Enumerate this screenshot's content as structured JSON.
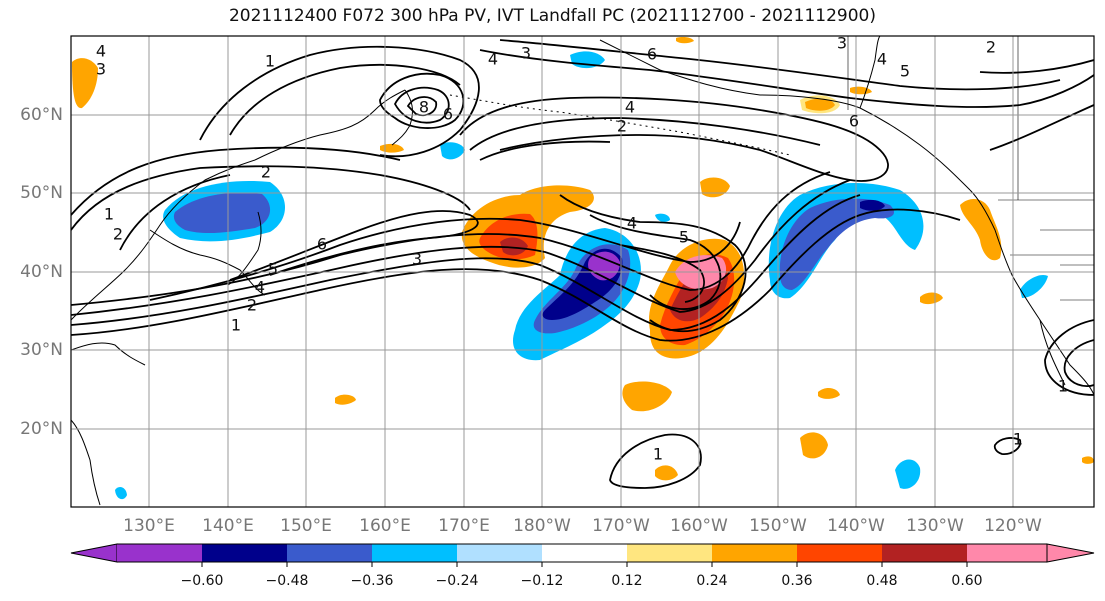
{
  "title": "2021112400 F072 300 hPa PV, IVT Landfall PC (2021112700 - 2021112900)",
  "lat_labels": [
    "60°N",
    "50°N",
    "40°N",
    "30°N",
    "20°N"
  ],
  "lon_labels": [
    "130°E",
    "140°E",
    "150°E",
    "160°E",
    "170°E",
    "180°W",
    "170°W",
    "160°W",
    "150°W",
    "140°W",
    "130°W",
    "120°W"
  ],
  "colorbar": {
    "ticks": [
      "−0.60",
      "−0.48",
      "−0.36",
      "−0.24",
      "−0.12",
      "0.12",
      "0.24",
      "0.36",
      "0.48",
      "0.60"
    ],
    "colors": [
      "#9932CC",
      "#00008B",
      "#3A5BCC",
      "#00BFFF",
      "#B0E0FF",
      "#FFFFFF",
      "#FFE680",
      "#FFA500",
      "#FF4500",
      "#B22222",
      "#FF88AA"
    ]
  },
  "contour_labels": [
    "4",
    "3",
    "1",
    "3",
    "4",
    "6",
    "3",
    "2",
    "4",
    "5",
    "8",
    "6",
    "4",
    "2",
    "6",
    "2",
    "1",
    "2",
    "6",
    "3",
    "5",
    "4",
    "2",
    "1",
    "4",
    "5",
    "1",
    "1",
    "1"
  ]
}
